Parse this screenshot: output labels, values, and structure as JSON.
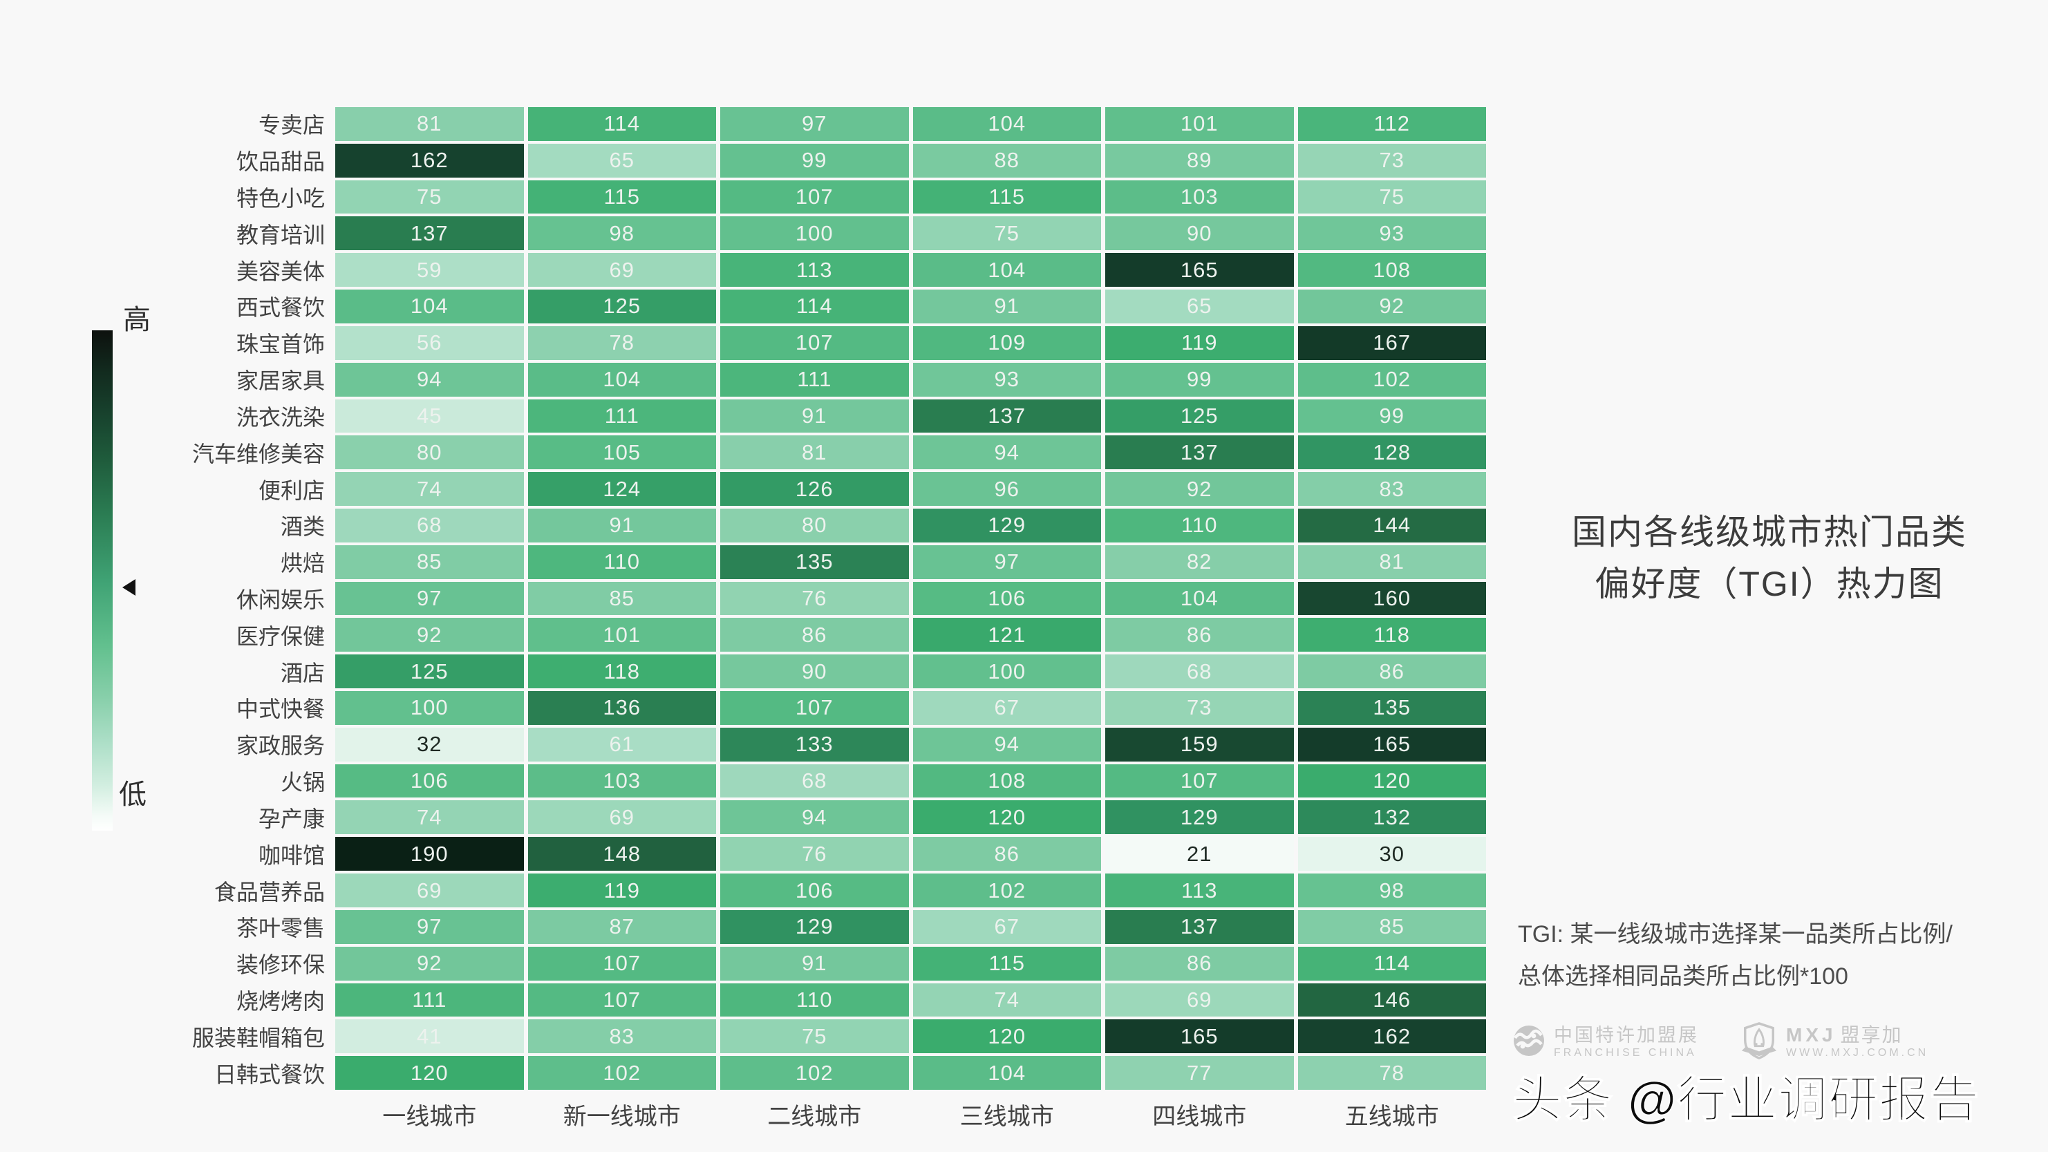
{
  "page": {
    "background": "#f8f8f8"
  },
  "title": {
    "line1": "国内各线级城市热门品类",
    "line2": "偏好度（TGI）热力图"
  },
  "note": {
    "line1": "TGI: 某一线级城市选择某一品类所占比例/",
    "line2": "总体选择相同品类所占比例*100"
  },
  "colorbar": {
    "high_label": "高",
    "low_label": "低"
  },
  "chart_data": {
    "type": "heatmap",
    "title": "国内各线级城市热门品类偏好度（TGI）热力图",
    "columns": [
      "一线城市",
      "新一线城市",
      "二线城市",
      "三线城市",
      "四线城市",
      "五线城市"
    ],
    "rows": [
      "专卖店",
      "饮品甜品",
      "特色小吃",
      "教育培训",
      "美容美体",
      "西式餐饮",
      "珠宝首饰",
      "家居家具",
      "洗衣洗染",
      "汽车维修美容",
      "便利店",
      "酒类",
      "烘焙",
      "休闲娱乐",
      "医疗保健",
      "酒店",
      "中式快餐",
      "家政服务",
      "火锅",
      "孕产康",
      "咖啡馆",
      "食品营养品",
      "茶叶零售",
      "装修环保",
      "烧烤烤肉",
      "服装鞋帽箱包",
      "日韩式餐饮"
    ],
    "values": [
      [
        81,
        114,
        97,
        104,
        101,
        112
      ],
      [
        162,
        65,
        99,
        88,
        89,
        73
      ],
      [
        75,
        115,
        107,
        115,
        103,
        75
      ],
      [
        137,
        98,
        100,
        75,
        90,
        93
      ],
      [
        59,
        69,
        113,
        104,
        165,
        108
      ],
      [
        104,
        125,
        114,
        91,
        65,
        92
      ],
      [
        56,
        78,
        107,
        109,
        119,
        167
      ],
      [
        94,
        104,
        111,
        93,
        99,
        102
      ],
      [
        45,
        111,
        91,
        137,
        125,
        99
      ],
      [
        80,
        105,
        81,
        94,
        137,
        128
      ],
      [
        74,
        124,
        126,
        96,
        92,
        83
      ],
      [
        68,
        91,
        80,
        129,
        110,
        144
      ],
      [
        85,
        110,
        135,
        97,
        82,
        81
      ],
      [
        97,
        85,
        76,
        106,
        104,
        160
      ],
      [
        92,
        101,
        86,
        121,
        86,
        118
      ],
      [
        125,
        118,
        90,
        100,
        68,
        86
      ],
      [
        100,
        136,
        107,
        67,
        73,
        135
      ],
      [
        32,
        61,
        133,
        94,
        159,
        165
      ],
      [
        106,
        103,
        68,
        108,
        107,
        120
      ],
      [
        74,
        69,
        94,
        120,
        129,
        132
      ],
      [
        190,
        148,
        76,
        86,
        21,
        30
      ],
      [
        69,
        119,
        106,
        102,
        113,
        98
      ],
      [
        97,
        87,
        129,
        67,
        137,
        85
      ],
      [
        92,
        107,
        91,
        115,
        86,
        114
      ],
      [
        111,
        107,
        110,
        74,
        69,
        146
      ],
      [
        41,
        83,
        75,
        120,
        165,
        162
      ],
      [
        120,
        102,
        102,
        104,
        77,
        78
      ]
    ],
    "vmin": 21,
    "vmax": 190,
    "color_stops": [
      [
        20,
        "#f6fbf8"
      ],
      [
        40,
        "#d4eee1"
      ],
      [
        60,
        "#abdec6"
      ],
      [
        80,
        "#8ad0ac"
      ],
      [
        100,
        "#62c08e"
      ],
      [
        110,
        "#4eb77e"
      ],
      [
        120,
        "#3aac6d"
      ],
      [
        130,
        "#2f8f60"
      ],
      [
        140,
        "#277549"
      ],
      [
        150,
        "#1f5c3c"
      ],
      [
        165,
        "#143c2a"
      ],
      [
        190,
        "#0a2015"
      ]
    ],
    "text_light": "#edf2ee",
    "text_dark": "#1f2a24",
    "dark_text_below": 40,
    "legend": {
      "high": "高",
      "low": "低",
      "position": "left"
    }
  },
  "footer": {
    "logo1": {
      "name": "中国特许加盟展",
      "sub": "FRANCHISE CHINA"
    },
    "logo2": {
      "monogram": "MXJ",
      "name": "盟享加",
      "sub": "WWW.MXJ.COM.CN"
    },
    "watermark": "头条 @行业调研报告"
  }
}
